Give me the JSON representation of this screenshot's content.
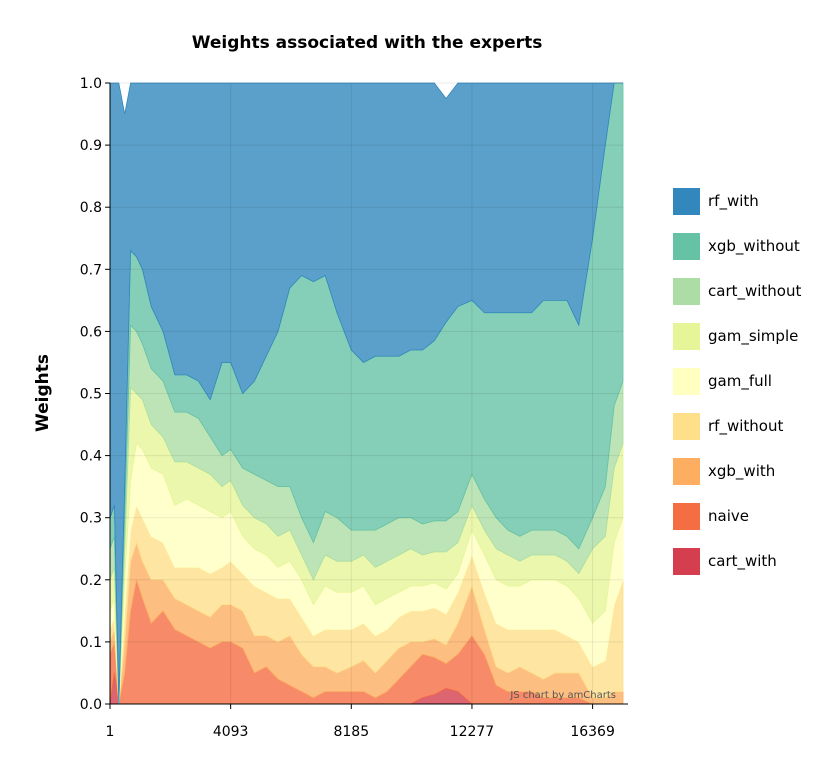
{
  "chart_data": {
    "type": "area",
    "stacked": true,
    "title": "Weights associated with the experts",
    "ylabel": "Weights",
    "xlabel": "",
    "ylim": [
      0,
      1
    ],
    "xlim": [
      1,
      17400
    ],
    "x_ticks": [
      "1",
      "4093",
      "8185",
      "12277",
      "16369"
    ],
    "y_ticks": [
      "0.0",
      "0.1",
      "0.2",
      "0.3",
      "0.4",
      "0.5",
      "0.6",
      "0.7",
      "0.8",
      "0.9",
      "1.0"
    ],
    "grid": true,
    "legend_position": "right",
    "credit": "JS chart by amCharts",
    "x": [
      1,
      150,
      300,
      500,
      700,
      900,
      1100,
      1400,
      1800,
      2200,
      2600,
      3000,
      3400,
      3800,
      4093,
      4500,
      4900,
      5300,
      5700,
      6100,
      6500,
      6900,
      7300,
      7700,
      8185,
      8600,
      9000,
      9400,
      9800,
      10200,
      10600,
      11000,
      11400,
      11800,
      12277,
      12700,
      13100,
      13500,
      13900,
      14300,
      14700,
      15100,
      15500,
      15900,
      16369,
      16800,
      17100,
      17400
    ],
    "series": [
      {
        "name": "cart_with",
        "color": "#d53e4f",
        "values": [
          0,
          0.05,
          0,
          0,
          0,
          0,
          0,
          0,
          0,
          0,
          0,
          0,
          0,
          0,
          0,
          0,
          0,
          0,
          0,
          0,
          0,
          0,
          0,
          0,
          0,
          0,
          0,
          0,
          0,
          0,
          0.01,
          0.015,
          0.025,
          0.02,
          0,
          0,
          0,
          0,
          0,
          0,
          0,
          0,
          0,
          0,
          0,
          0,
          0,
          0
        ]
      },
      {
        "name": "naive",
        "color": "#f46d43",
        "values": [
          0.08,
          0.05,
          0,
          0.05,
          0.15,
          0.2,
          0.17,
          0.13,
          0.15,
          0.12,
          0.11,
          0.1,
          0.09,
          0.1,
          0.1,
          0.09,
          0.05,
          0.06,
          0.04,
          0.03,
          0.02,
          0.01,
          0.02,
          0.02,
          0.02,
          0.02,
          0.01,
          0.02,
          0.04,
          0.06,
          0.07,
          0.06,
          0.04,
          0.06,
          0.11,
          0.08,
          0.03,
          0.02,
          0.02,
          0.02,
          0.01,
          0.01,
          0.01,
          0.01,
          0,
          0,
          0,
          0
        ]
      },
      {
        "name": "xgb_with",
        "color": "#fdae61",
        "values": [
          0.02,
          0.02,
          0,
          0.05,
          0.08,
          0.06,
          0.06,
          0.07,
          0.05,
          0.05,
          0.05,
          0.05,
          0.05,
          0.06,
          0.06,
          0.06,
          0.06,
          0.05,
          0.06,
          0.08,
          0.06,
          0.05,
          0.04,
          0.03,
          0.04,
          0.05,
          0.04,
          0.05,
          0.05,
          0.04,
          0.02,
          0.03,
          0.03,
          0.05,
          0.08,
          0.04,
          0.03,
          0.03,
          0.04,
          0.03,
          0.03,
          0.04,
          0.04,
          0.04,
          0.01,
          0.01,
          0.02,
          0.02
        ]
      },
      {
        "name": "rf_without",
        "color": "#fee08b",
        "values": [
          0.02,
          0.02,
          0,
          0.05,
          0.05,
          0.06,
          0.07,
          0.07,
          0.06,
          0.05,
          0.06,
          0.07,
          0.07,
          0.06,
          0.07,
          0.06,
          0.08,
          0.07,
          0.07,
          0.06,
          0.06,
          0.05,
          0.06,
          0.07,
          0.06,
          0.06,
          0.06,
          0.05,
          0.05,
          0.05,
          0.05,
          0.05,
          0.05,
          0.05,
          0.05,
          0.06,
          0.07,
          0.07,
          0.06,
          0.07,
          0.08,
          0.07,
          0.06,
          0.05,
          0.05,
          0.06,
          0.14,
          0.18
        ]
      },
      {
        "name": "gam_full",
        "color": "#ffffbf",
        "values": [
          0.03,
          0.03,
          0,
          0.05,
          0.08,
          0.1,
          0.11,
          0.11,
          0.11,
          0.1,
          0.11,
          0.1,
          0.1,
          0.08,
          0.08,
          0.06,
          0.06,
          0.06,
          0.05,
          0.06,
          0.06,
          0.05,
          0.07,
          0.06,
          0.06,
          0.06,
          0.05,
          0.05,
          0.04,
          0.04,
          0.04,
          0.04,
          0.04,
          0.03,
          0.04,
          0.06,
          0.07,
          0.07,
          0.07,
          0.08,
          0.08,
          0.08,
          0.08,
          0.07,
          0.07,
          0.08,
          0.1,
          0.1
        ]
      },
      {
        "name": "gam_simple",
        "color": "#e6f598",
        "values": [
          0.05,
          0.05,
          0,
          0.05,
          0.15,
          0.08,
          0.08,
          0.07,
          0.06,
          0.07,
          0.06,
          0.06,
          0.06,
          0.05,
          0.05,
          0.05,
          0.05,
          0.05,
          0.05,
          0.05,
          0.04,
          0.04,
          0.05,
          0.05,
          0.05,
          0.05,
          0.06,
          0.06,
          0.06,
          0.06,
          0.05,
          0.05,
          0.06,
          0.05,
          0.04,
          0.04,
          0.05,
          0.05,
          0.04,
          0.04,
          0.04,
          0.04,
          0.04,
          0.04,
          0.12,
          0.12,
          0.12,
          0.12
        ]
      },
      {
        "name": "cart_without",
        "color": "#abdda4",
        "values": [
          0.05,
          0.05,
          0,
          0.05,
          0.1,
          0.1,
          0.09,
          0.09,
          0.09,
          0.08,
          0.08,
          0.08,
          0.06,
          0.05,
          0.05,
          0.06,
          0.07,
          0.07,
          0.08,
          0.07,
          0.06,
          0.06,
          0.07,
          0.07,
          0.05,
          0.04,
          0.06,
          0.06,
          0.06,
          0.05,
          0.05,
          0.05,
          0.05,
          0.05,
          0.05,
          0.05,
          0.05,
          0.04,
          0.04,
          0.04,
          0.04,
          0.04,
          0.04,
          0.04,
          0.05,
          0.08,
          0.1,
          0.1
        ]
      },
      {
        "name": "xgb_without",
        "color": "#66c2a5",
        "values": [
          0.05,
          0.05,
          0,
          0.05,
          0.12,
          0.12,
          0.12,
          0.1,
          0.08,
          0.06,
          0.06,
          0.06,
          0.06,
          0.15,
          0.14,
          0.12,
          0.15,
          0.2,
          0.25,
          0.32,
          0.39,
          0.42,
          0.38,
          0.33,
          0.29,
          0.27,
          0.28,
          0.27,
          0.26,
          0.27,
          0.28,
          0.29,
          0.32,
          0.33,
          0.28,
          0.3,
          0.33,
          0.35,
          0.36,
          0.35,
          0.37,
          0.37,
          0.38,
          0.36,
          0.45,
          0.55,
          0.52,
          0.48
        ]
      },
      {
        "name": "rf_with",
        "color": "#3288bd",
        "values": [
          0.7,
          0.68,
          1,
          0.6,
          0.27,
          0.28,
          0.3,
          0.36,
          0.4,
          0.47,
          0.47,
          0.48,
          0.51,
          0.45,
          0.45,
          0.5,
          0.48,
          0.44,
          0.4,
          0.33,
          0.31,
          0.32,
          0.31,
          0.37,
          0.43,
          0.45,
          0.44,
          0.44,
          0.44,
          0.43,
          0.43,
          0.42,
          0.36,
          0.36,
          0.35,
          0.37,
          0.37,
          0.37,
          0.37,
          0.37,
          0.35,
          0.35,
          0.35,
          0.39,
          0.25,
          0.1,
          0,
          0
        ]
      }
    ]
  }
}
